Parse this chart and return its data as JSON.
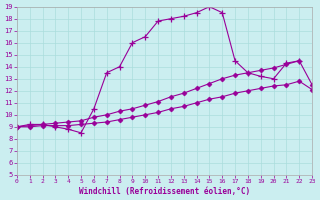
{
  "xlabel": "Windchill (Refroidissement éolien,°C)",
  "xlim": [
    0,
    23
  ],
  "ylim": [
    5,
    19
  ],
  "xticks": [
    0,
    1,
    2,
    3,
    4,
    5,
    6,
    7,
    8,
    9,
    10,
    11,
    12,
    13,
    14,
    15,
    16,
    17,
    18,
    19,
    20,
    21,
    22,
    23
  ],
  "yticks": [
    5,
    6,
    7,
    8,
    9,
    10,
    11,
    12,
    13,
    14,
    15,
    16,
    17,
    18,
    19
  ],
  "bg_color": "#cbeef0",
  "line_color": "#990099",
  "grid_color": "#aadddd",
  "series": [
    {
      "x": [
        0,
        1,
        2,
        3,
        4,
        5,
        6,
        7,
        8,
        9,
        10,
        11,
        12,
        13,
        14,
        15,
        16,
        17,
        18,
        19,
        20,
        21,
        22
      ],
      "y": [
        9.0,
        9.2,
        9.2,
        9.0,
        8.8,
        8.5,
        10.5,
        13.5,
        14.0,
        16.0,
        16.5,
        17.8,
        18.0,
        18.2,
        18.5,
        19.0,
        18.5,
        14.5,
        13.5,
        13.2,
        13.0,
        14.3,
        14.5
      ],
      "marker": "+"
    },
    {
      "x": [
        0,
        1,
        2,
        3,
        4,
        5,
        6,
        7,
        8,
        9,
        10,
        11,
        12,
        13,
        14,
        15,
        16,
        17,
        18,
        19,
        20,
        21,
        22,
        23
      ],
      "y": [
        9.0,
        9.1,
        9.2,
        9.3,
        9.4,
        9.5,
        9.8,
        10.0,
        10.3,
        10.5,
        10.8,
        11.1,
        11.5,
        11.8,
        12.2,
        12.6,
        13.0,
        13.3,
        13.5,
        13.7,
        13.9,
        14.2,
        14.5,
        12.5
      ],
      "marker": "D"
    },
    {
      "x": [
        0,
        1,
        2,
        3,
        4,
        5,
        6,
        7,
        8,
        9,
        10,
        11,
        12,
        13,
        14,
        15,
        16,
        17,
        18,
        19,
        20,
        21,
        22,
        23
      ],
      "y": [
        9.0,
        9.0,
        9.1,
        9.1,
        9.1,
        9.2,
        9.3,
        9.4,
        9.6,
        9.8,
        10.0,
        10.2,
        10.5,
        10.7,
        11.0,
        11.3,
        11.5,
        11.8,
        12.0,
        12.2,
        12.4,
        12.5,
        12.8,
        12.1
      ],
      "marker": "D"
    }
  ]
}
